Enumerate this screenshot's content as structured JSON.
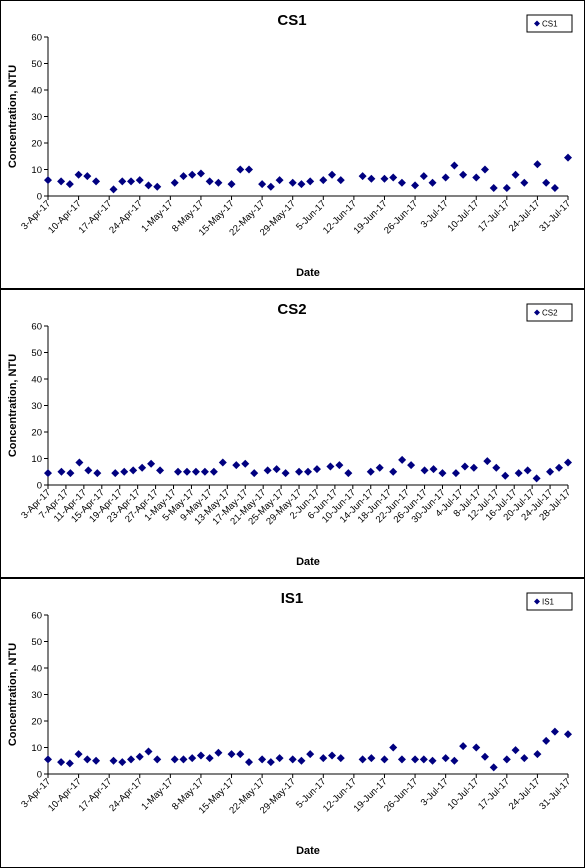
{
  "chart_data": [
    {
      "type": "scatter",
      "title": "CS1",
      "xlabel": "Date",
      "ylabel": "Concentration, NTU",
      "legend": "upper right",
      "x": [
        "2017-04-03",
        "2017-04-06",
        "2017-04-08",
        "2017-04-10",
        "2017-04-12",
        "2017-04-14",
        "2017-04-18",
        "2017-04-20",
        "2017-04-22",
        "2017-04-24",
        "2017-04-26",
        "2017-04-28",
        "2017-05-02",
        "2017-05-04",
        "2017-05-06",
        "2017-05-08",
        "2017-05-10",
        "2017-05-12",
        "2017-05-15",
        "2017-05-17",
        "2017-05-19",
        "2017-05-22",
        "2017-05-24",
        "2017-05-26",
        "2017-05-29",
        "2017-05-31",
        "2017-06-02",
        "2017-06-05",
        "2017-06-07",
        "2017-06-09",
        "2017-06-14",
        "2017-06-16",
        "2017-06-19",
        "2017-06-21",
        "2017-06-23",
        "2017-06-26",
        "2017-06-28",
        "2017-06-30",
        "2017-07-03",
        "2017-07-05",
        "2017-07-07",
        "2017-07-10",
        "2017-07-12",
        "2017-07-14",
        "2017-07-17",
        "2017-07-19",
        "2017-07-21",
        "2017-07-24",
        "2017-07-26",
        "2017-07-28",
        "2017-07-31"
      ],
      "series": [
        {
          "name": "CS1",
          "color": "#000080",
          "values": [
            6,
            5.5,
            4.5,
            8,
            7.5,
            5.5,
            2.5,
            5.5,
            5.5,
            6,
            4,
            3.5,
            5,
            7.5,
            8,
            8.5,
            5.5,
            5,
            4.5,
            10,
            10,
            4.5,
            3.5,
            6,
            5,
            4.5,
            5.5,
            6,
            8,
            6,
            7.5,
            6.5,
            6.5,
            7,
            5,
            4,
            7.5,
            5,
            7,
            11.5,
            8,
            7,
            10,
            3,
            3,
            8,
            5,
            12,
            5,
            3,
            14.5
          ]
        }
      ],
      "xlim": [
        "2017-04-03",
        "2017-07-31"
      ],
      "xticks": [
        {
          "value": "2017-04-03",
          "label": "3-Apr-17"
        },
        {
          "value": "2017-04-10",
          "label": "10-Apr-17"
        },
        {
          "value": "2017-04-17",
          "label": "17-Apr-17"
        },
        {
          "value": "2017-04-24",
          "label": "24-Apr-17"
        },
        {
          "value": "2017-05-01",
          "label": "1-May-17"
        },
        {
          "value": "2017-05-08",
          "label": "8-May-17"
        },
        {
          "value": "2017-05-15",
          "label": "15-May-17"
        },
        {
          "value": "2017-05-22",
          "label": "22-May-17"
        },
        {
          "value": "2017-05-29",
          "label": "29-May-17"
        },
        {
          "value": "2017-06-05",
          "label": "5-Jun-17"
        },
        {
          "value": "2017-06-12",
          "label": "12-Jun-17"
        },
        {
          "value": "2017-06-19",
          "label": "19-Jun-17"
        },
        {
          "value": "2017-06-26",
          "label": "26-Jun-17"
        },
        {
          "value": "2017-07-03",
          "label": "3-Jul-17"
        },
        {
          "value": "2017-07-10",
          "label": "10-Jul-17"
        },
        {
          "value": "2017-07-17",
          "label": "17-Jul-17"
        },
        {
          "value": "2017-07-24",
          "label": "24-Jul-17"
        },
        {
          "value": "2017-07-31",
          "label": "31-Jul-17"
        }
      ],
      "ylim": [
        0,
        60
      ],
      "yticks": [
        0,
        10,
        20,
        30,
        40,
        50,
        60
      ]
    },
    {
      "type": "scatter",
      "title": "CS2",
      "xlabel": "Date",
      "ylabel": "Concentration, NTU",
      "legend": "upper right",
      "x": [
        "2017-04-03",
        "2017-04-06",
        "2017-04-08",
        "2017-04-10",
        "2017-04-12",
        "2017-04-14",
        "2017-04-18",
        "2017-04-20",
        "2017-04-22",
        "2017-04-24",
        "2017-04-26",
        "2017-04-28",
        "2017-05-02",
        "2017-05-04",
        "2017-05-06",
        "2017-05-08",
        "2017-05-10",
        "2017-05-12",
        "2017-05-15",
        "2017-05-17",
        "2017-05-19",
        "2017-05-22",
        "2017-05-24",
        "2017-05-26",
        "2017-05-29",
        "2017-05-31",
        "2017-06-02",
        "2017-06-05",
        "2017-06-07",
        "2017-06-09",
        "2017-06-14",
        "2017-06-16",
        "2017-06-19",
        "2017-06-21",
        "2017-06-23",
        "2017-06-26",
        "2017-06-28",
        "2017-06-30",
        "2017-07-03",
        "2017-07-05",
        "2017-07-07",
        "2017-07-10",
        "2017-07-12",
        "2017-07-14",
        "2017-07-17",
        "2017-07-19",
        "2017-07-21",
        "2017-07-24",
        "2017-07-26",
        "2017-07-28"
      ],
      "series": [
        {
          "name": "CS2",
          "color": "#000080",
          "values": [
            4.5,
            5,
            4.5,
            8.5,
            5.5,
            4.5,
            4.5,
            5,
            5.5,
            6.5,
            8,
            5.5,
            5,
            5,
            5,
            5,
            5,
            8.5,
            7.5,
            8,
            4.5,
            5.5,
            6,
            4.5,
            5,
            5,
            6,
            7,
            7.5,
            4.5,
            5,
            6.5,
            5,
            9.5,
            7.5,
            5.5,
            6,
            4.5,
            4.5,
            7,
            6.5,
            9,
            6.5,
            3.5,
            4.5,
            5.5,
            2.5,
            5,
            6.5,
            8.5
          ]
        }
      ],
      "xlim": [
        "2017-04-03",
        "2017-07-28"
      ],
      "xticks": [
        {
          "value": "2017-04-03",
          "label": "3-Apr-17"
        },
        {
          "value": "2017-04-07",
          "label": "7-Apr-17"
        },
        {
          "value": "2017-04-11",
          "label": "11-Apr-17"
        },
        {
          "value": "2017-04-15",
          "label": "15-Apr-17"
        },
        {
          "value": "2017-04-19",
          "label": "19-Apr-17"
        },
        {
          "value": "2017-04-23",
          "label": "23-Apr-17"
        },
        {
          "value": "2017-04-27",
          "label": "27-Apr-17"
        },
        {
          "value": "2017-05-01",
          "label": "1-May-17"
        },
        {
          "value": "2017-05-05",
          "label": "5-May-17"
        },
        {
          "value": "2017-05-09",
          "label": "9-May-17"
        },
        {
          "value": "2017-05-13",
          "label": "13-May-17"
        },
        {
          "value": "2017-05-17",
          "label": "17-May-17"
        },
        {
          "value": "2017-05-21",
          "label": "21-May-17"
        },
        {
          "value": "2017-05-25",
          "label": "25-May-17"
        },
        {
          "value": "2017-05-29",
          "label": "29-May-17"
        },
        {
          "value": "2017-06-02",
          "label": "2-Jun-17"
        },
        {
          "value": "2017-06-06",
          "label": "6-Jun-17"
        },
        {
          "value": "2017-06-10",
          "label": "10-Jun-17"
        },
        {
          "value": "2017-06-14",
          "label": "14-Jun-17"
        },
        {
          "value": "2017-06-18",
          "label": "18-Jun-17"
        },
        {
          "value": "2017-06-22",
          "label": "22-Jun-17"
        },
        {
          "value": "2017-06-26",
          "label": "26-Jun-17"
        },
        {
          "value": "2017-06-30",
          "label": "30-Jun-17"
        },
        {
          "value": "2017-07-04",
          "label": "4-Jul-17"
        },
        {
          "value": "2017-07-08",
          "label": "8-Jul-17"
        },
        {
          "value": "2017-07-12",
          "label": "12-Jul-17"
        },
        {
          "value": "2017-07-16",
          "label": "16-Jul-17"
        },
        {
          "value": "2017-07-20",
          "label": "20-Jul-17"
        },
        {
          "value": "2017-07-24",
          "label": "24-Jul-17"
        },
        {
          "value": "2017-07-28",
          "label": "28-Jul-17"
        }
      ],
      "ylim": [
        0,
        60
      ],
      "yticks": [
        0,
        10,
        20,
        30,
        40,
        50,
        60
      ]
    },
    {
      "type": "scatter",
      "title": "IS1",
      "xlabel": "Date",
      "ylabel": "Concentration, NTU",
      "legend": "upper right",
      "x": [
        "2017-04-03",
        "2017-04-06",
        "2017-04-08",
        "2017-04-10",
        "2017-04-12",
        "2017-04-14",
        "2017-04-18",
        "2017-04-20",
        "2017-04-22",
        "2017-04-24",
        "2017-04-26",
        "2017-04-28",
        "2017-05-02",
        "2017-05-04",
        "2017-05-06",
        "2017-05-08",
        "2017-05-10",
        "2017-05-12",
        "2017-05-15",
        "2017-05-17",
        "2017-05-19",
        "2017-05-22",
        "2017-05-24",
        "2017-05-26",
        "2017-05-29",
        "2017-05-31",
        "2017-06-02",
        "2017-06-05",
        "2017-06-07",
        "2017-06-09",
        "2017-06-14",
        "2017-06-16",
        "2017-06-19",
        "2017-06-21",
        "2017-06-23",
        "2017-06-26",
        "2017-06-28",
        "2017-06-30",
        "2017-07-03",
        "2017-07-05",
        "2017-07-07",
        "2017-07-10",
        "2017-07-12",
        "2017-07-14",
        "2017-07-17",
        "2017-07-19",
        "2017-07-21",
        "2017-07-24",
        "2017-07-26",
        "2017-07-28",
        "2017-07-31"
      ],
      "series": [
        {
          "name": "IS1",
          "color": "#000080",
          "values": [
            5.5,
            4.5,
            4,
            7.5,
            5.5,
            5,
            5,
            4.5,
            5.5,
            6.5,
            8.5,
            5.5,
            5.5,
            5.5,
            6,
            7,
            6,
            8,
            7.5,
            7.5,
            4.5,
            5.5,
            4.5,
            6,
            5.5,
            5,
            7.5,
            6,
            7,
            6,
            5.5,
            6,
            5.5,
            10,
            5.5,
            5.5,
            5.5,
            5,
            6,
            5,
            10.5,
            10,
            6.5,
            2.5,
            5.5,
            9,
            6,
            7.5,
            12.5,
            16,
            15
          ]
        }
      ],
      "xlim": [
        "2017-04-03",
        "2017-07-31"
      ],
      "xticks": [
        {
          "value": "2017-04-03",
          "label": "3-Apr-17"
        },
        {
          "value": "2017-04-10",
          "label": "10-Apr-17"
        },
        {
          "value": "2017-04-17",
          "label": "17-Apr-17"
        },
        {
          "value": "2017-04-24",
          "label": "24-Apr-17"
        },
        {
          "value": "2017-05-01",
          "label": "1-May-17"
        },
        {
          "value": "2017-05-08",
          "label": "8-May-17"
        },
        {
          "value": "2017-05-15",
          "label": "15-May-17"
        },
        {
          "value": "2017-05-22",
          "label": "22-May-17"
        },
        {
          "value": "2017-05-29",
          "label": "29-May-17"
        },
        {
          "value": "2017-06-05",
          "label": "5-Jun-17"
        },
        {
          "value": "2017-06-12",
          "label": "12-Jun-17"
        },
        {
          "value": "2017-06-19",
          "label": "19-Jun-17"
        },
        {
          "value": "2017-06-26",
          "label": "26-Jun-17"
        },
        {
          "value": "2017-07-03",
          "label": "3-Jul-17"
        },
        {
          "value": "2017-07-10",
          "label": "10-Jul-17"
        },
        {
          "value": "2017-07-17",
          "label": "17-Jul-17"
        },
        {
          "value": "2017-07-24",
          "label": "24-Jul-17"
        },
        {
          "value": "2017-07-31",
          "label": "31-Jul-17"
        }
      ],
      "ylim": [
        0,
        60
      ],
      "yticks": [
        0,
        10,
        20,
        30,
        40,
        50,
        60
      ]
    }
  ]
}
